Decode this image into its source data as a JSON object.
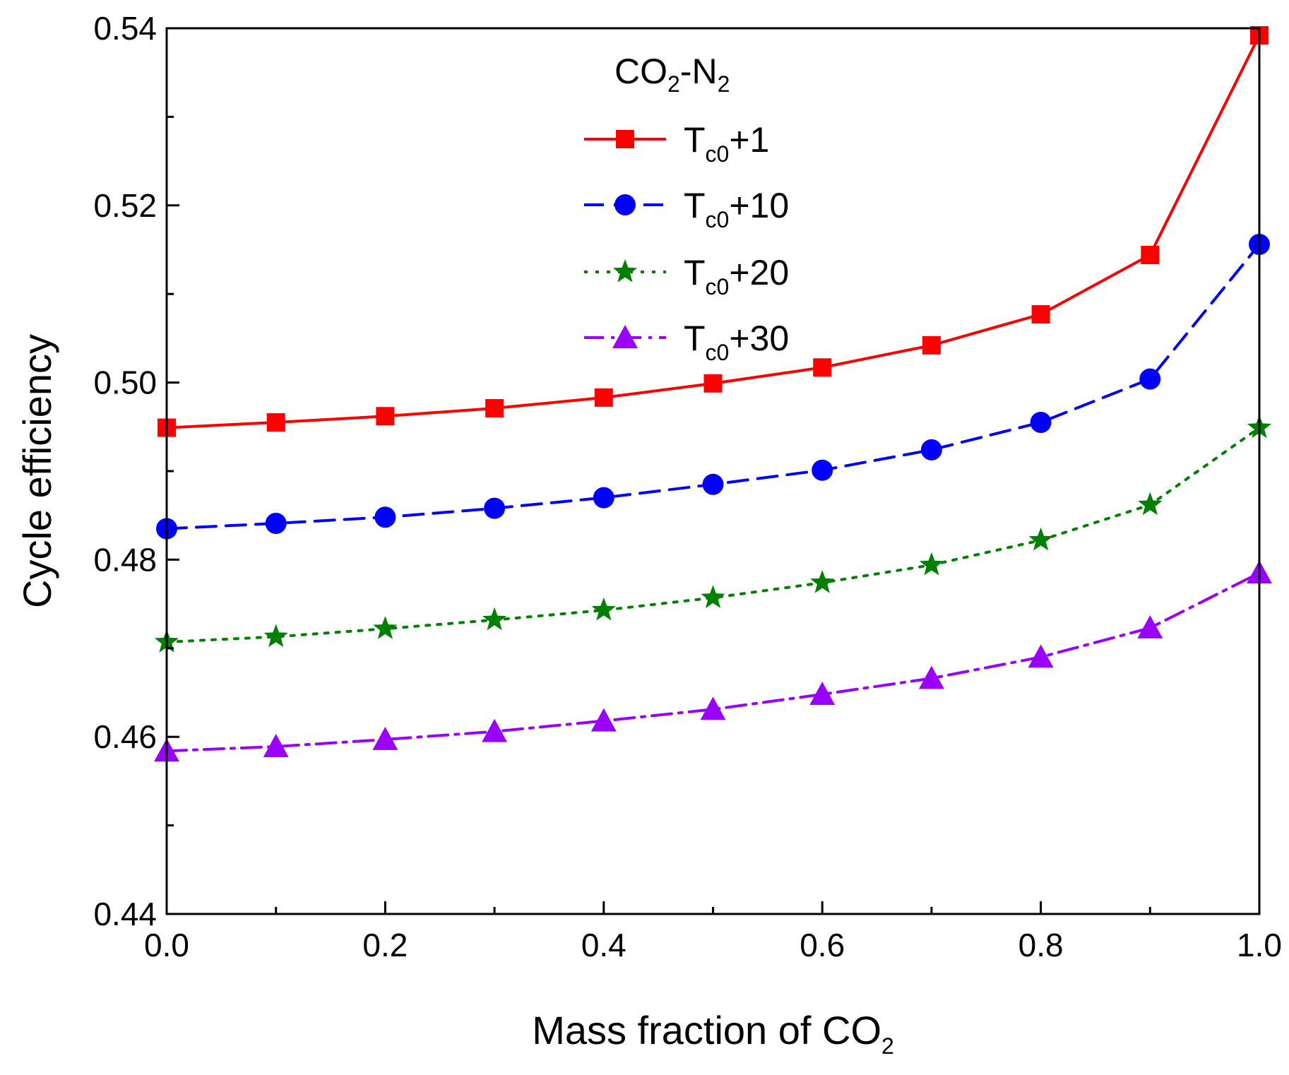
{
  "chart_data": {
    "type": "line",
    "xlabel": "Mass fraction of CO",
    "xlabel_sub": "2",
    "ylabel": "Cycle efficiency",
    "xlim": [
      0.0,
      1.0
    ],
    "ylim": [
      0.44,
      0.54
    ],
    "xticks": [
      0.0,
      0.1,
      0.2,
      0.3,
      0.4,
      0.5,
      0.6,
      0.7,
      0.8,
      0.9,
      1.0
    ],
    "xtick_labels": [
      "0.0",
      "0.2",
      "0.4",
      "0.6",
      "0.8",
      "1.0"
    ],
    "xtick_label_values": [
      0.0,
      0.2,
      0.4,
      0.6,
      0.8,
      1.0
    ],
    "yticks": [
      0.44,
      0.45,
      0.46,
      0.47,
      0.48,
      0.49,
      0.5,
      0.51,
      0.52,
      0.53,
      0.54
    ],
    "ytick_labels": [
      "0.44",
      "0.46",
      "0.48",
      "0.50",
      "0.52",
      "0.54"
    ],
    "ytick_label_values": [
      0.44,
      0.46,
      0.48,
      0.5,
      0.52,
      0.54
    ],
    "legend": {
      "title_main": "CO",
      "title_sub": "2",
      "title_mid": "-N",
      "title_sub2": "2",
      "position": "top-center"
    },
    "x": [
      0.0,
      0.1,
      0.2,
      0.3,
      0.4,
      0.5,
      0.6,
      0.7,
      0.8,
      0.9,
      1.0
    ],
    "series": [
      {
        "name": "Tc0+1",
        "label_main": "T",
        "label_sub": "c0",
        "label_suffix": "+1",
        "color": "#ff0000",
        "marker": "square",
        "dash": "solid",
        "values": [
          0.4949,
          0.4955,
          0.4962,
          0.4971,
          0.4983,
          0.4999,
          0.5017,
          0.5042,
          0.5077,
          0.5144,
          0.5392
        ]
      },
      {
        "name": "Tc0+10",
        "label_main": "T",
        "label_sub": "c0",
        "label_suffix": "+10",
        "color": "#0000ff",
        "marker": "circle",
        "dash": "dashed",
        "values": [
          0.4835,
          0.4841,
          0.4848,
          0.4858,
          0.487,
          0.4885,
          0.4901,
          0.4924,
          0.4955,
          0.5004,
          0.5156
        ]
      },
      {
        "name": "Tc0+20",
        "label_main": "T",
        "label_sub": "c0",
        "label_suffix": "+20",
        "color": "#008000",
        "marker": "star",
        "dash": "dotted",
        "values": [
          0.4707,
          0.4713,
          0.4722,
          0.4732,
          0.4743,
          0.4757,
          0.4774,
          0.4794,
          0.4822,
          0.4862,
          0.4949
        ]
      },
      {
        "name": "Tc0+30",
        "label_main": "T",
        "label_sub": "c0",
        "label_suffix": "+30",
        "color": "#9900ff",
        "marker": "triangle",
        "dash": "dashdot",
        "values": [
          0.4584,
          0.4589,
          0.4597,
          0.4606,
          0.4618,
          0.4631,
          0.4648,
          0.4666,
          0.469,
          0.4723,
          0.4785
        ]
      }
    ]
  }
}
